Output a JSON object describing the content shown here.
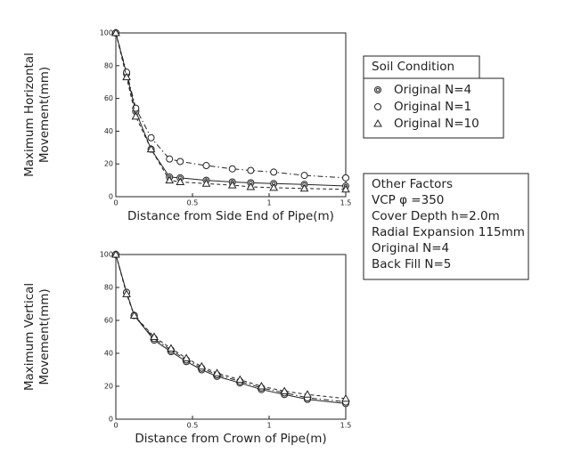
{
  "chart_data": [
    {
      "type": "line",
      "xlabel": "Distance from Side End of Pipe(m)",
      "ylabel": [
        "Maximum Horizontal",
        "Movement(mm)"
      ],
      "xlim": [
        0,
        1.5
      ],
      "xticks": [
        0,
        0.5,
        1,
        1.5
      ],
      "ylim": [
        0,
        100
      ],
      "yticks": [
        0,
        20,
        40,
        60,
        80,
        100
      ],
      "x": [
        0,
        0.07,
        0.13,
        0.23,
        0.35,
        0.42,
        0.59,
        0.76,
        0.88,
        1.03,
        1.23,
        1.5
      ],
      "series": [
        {
          "name": "Original N=4",
          "color": "#222222",
          "marker": "double-circle",
          "dash": "solid",
          "values": [
            100,
            75,
            52,
            29,
            12,
            11.5,
            10,
            9,
            8.5,
            8,
            7.5,
            6.5
          ]
        },
        {
          "name": "Original N=1",
          "color": "#222222",
          "marker": "circle",
          "dash": "dashdot",
          "values": [
            100,
            76,
            54,
            36,
            23,
            21.5,
            19,
            17,
            16,
            15,
            13,
            11.5
          ]
        },
        {
          "name": "Original N=10",
          "color": "#222222",
          "marker": "triangle",
          "dash": "dashed",
          "values": [
            100,
            73,
            49,
            29,
            10,
            9,
            8,
            7,
            6,
            5.5,
            5,
            4.5
          ]
        }
      ]
    },
    {
      "type": "line",
      "xlabel": "Distance from Crown of Pipe(m)",
      "ylabel": [
        "Maximum Vertical",
        "Movement(mm)"
      ],
      "xlim": [
        0,
        1.5
      ],
      "xticks": [
        0,
        0.5,
        1,
        1.5
      ],
      "ylim": [
        0,
        100
      ],
      "yticks": [
        0,
        20,
        40,
        60,
        80,
        100
      ],
      "x": [
        0,
        0.07,
        0.12,
        0.25,
        0.36,
        0.46,
        0.56,
        0.66,
        0.81,
        0.95,
        1.1,
        1.25,
        1.5
      ],
      "series": [
        {
          "name": "Original N=4",
          "color": "#222222",
          "marker": "double-circle",
          "dash": "solid",
          "values": [
            100,
            77,
            63,
            48,
            41,
            35,
            30,
            26,
            22,
            18,
            15,
            12,
            9.5
          ]
        },
        {
          "name": "Original N=1",
          "color": "#222222",
          "marker": "circle",
          "dash": "dashdot",
          "values": [
            100,
            77,
            63,
            49,
            42,
            36,
            31,
            27,
            23,
            19,
            16,
            13,
            10.5
          ]
        },
        {
          "name": "Original N=10",
          "color": "#222222",
          "marker": "triangle",
          "dash": "dashed",
          "values": [
            100,
            76,
            63,
            50,
            43,
            37,
            32,
            28,
            24,
            20,
            17,
            15,
            12.5
          ]
        }
      ]
    }
  ],
  "legend_title": "Soil Condition",
  "notes": {
    "title": "Other Factors",
    "lines": [
      "VCP  φ =350",
      "Cover Depth h=2.0m",
      "Radial Expansion 115mm",
      "Original N=4",
      "Back Fill N=5"
    ]
  }
}
